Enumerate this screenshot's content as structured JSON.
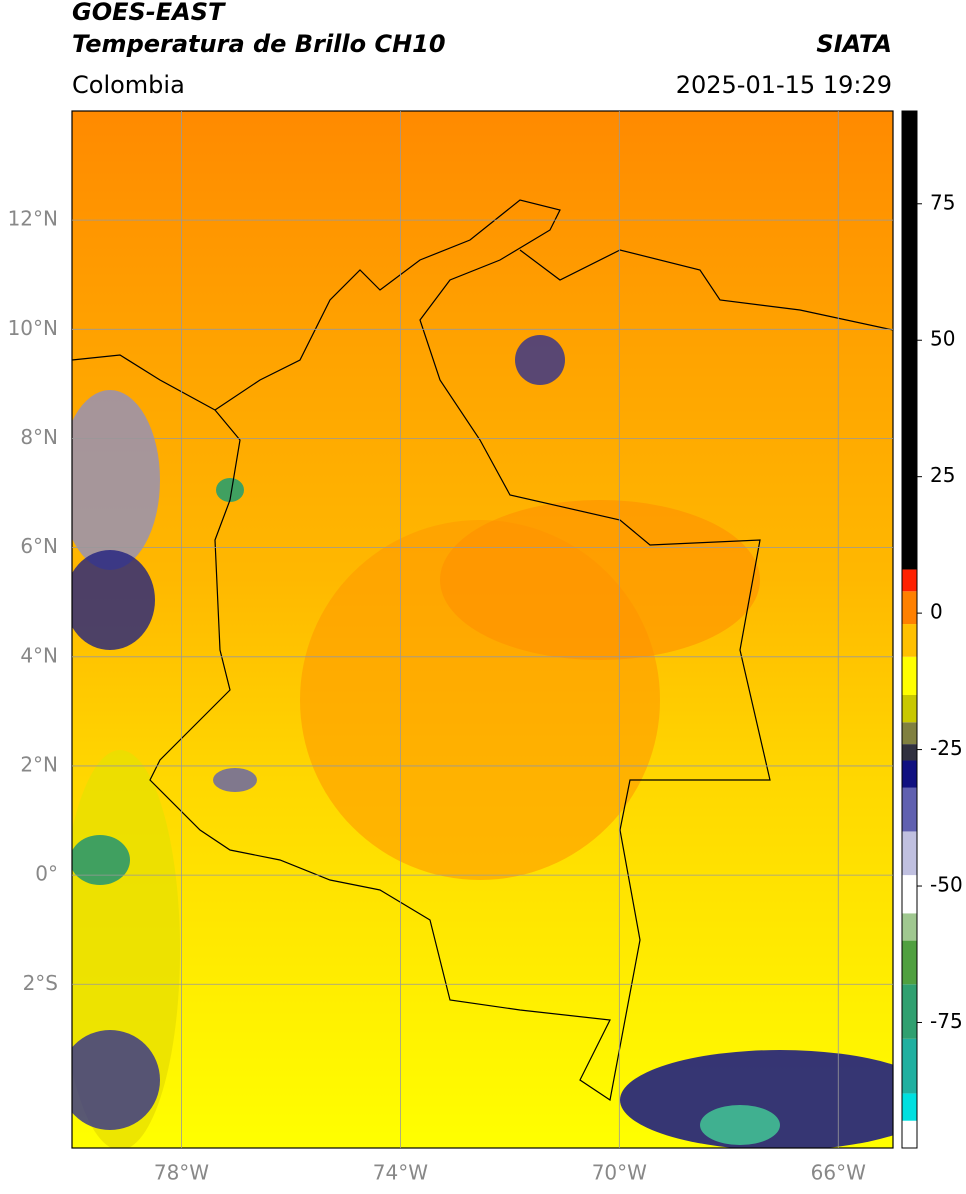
{
  "header": {
    "satellite": "GOES-EAST",
    "product": "Temperatura de Brillo CH10",
    "region": "Colombia",
    "source": "SIATA",
    "datetime": "2025-01-15 19:29"
  },
  "map": {
    "xlim": [
      -80,
      -65
    ],
    "ylim": [
      -5,
      14
    ],
    "xticks": [
      {
        "value": -78,
        "label": "78°W"
      },
      {
        "value": -74,
        "label": "74°W"
      },
      {
        "value": -70,
        "label": "70°W"
      },
      {
        "value": -66,
        "label": "66°W"
      }
    ],
    "yticks": [
      {
        "value": 12,
        "label": "12°N"
      },
      {
        "value": 10,
        "label": "10°N"
      },
      {
        "value": 8,
        "label": "8°N"
      },
      {
        "value": 6,
        "label": "6°N"
      },
      {
        "value": 4,
        "label": "4°N"
      },
      {
        "value": 2,
        "label": "2°N"
      },
      {
        "value": 0,
        "label": "0°"
      },
      {
        "value": -2,
        "label": "2°S"
      }
    ],
    "grid": true,
    "grid_color": "#999999"
  },
  "colorbar": {
    "lim": [
      -98,
      92
    ],
    "ticks": [
      75,
      50,
      25,
      0,
      -25,
      -50,
      -75
    ],
    "stops": [
      {
        "value": -98,
        "color": "#ffffff"
      },
      {
        "value": -93,
        "color": "#00e0e0"
      },
      {
        "value": -88,
        "color": "#20b0a0"
      },
      {
        "value": -78,
        "color": "#30a070"
      },
      {
        "value": -68,
        "color": "#50a040"
      },
      {
        "value": -60,
        "color": "#a0c890"
      },
      {
        "value": -55,
        "color": "#ffffff"
      },
      {
        "value": -48,
        "color": "#c0c0e0"
      },
      {
        "value": -40,
        "color": "#6060b0"
      },
      {
        "value": -32,
        "color": "#101080"
      },
      {
        "value": -27,
        "color": "#303040"
      },
      {
        "value": -24,
        "color": "#808040"
      },
      {
        "value": -20,
        "color": "#c8c800"
      },
      {
        "value": -15,
        "color": "#ffff00"
      },
      {
        "value": -8,
        "color": "#ffc000"
      },
      {
        "value": -2,
        "color": "#ff8000"
      },
      {
        "value": 4,
        "color": "#ff2000"
      },
      {
        "value": 8,
        "color": "#000000"
      }
    ]
  }
}
